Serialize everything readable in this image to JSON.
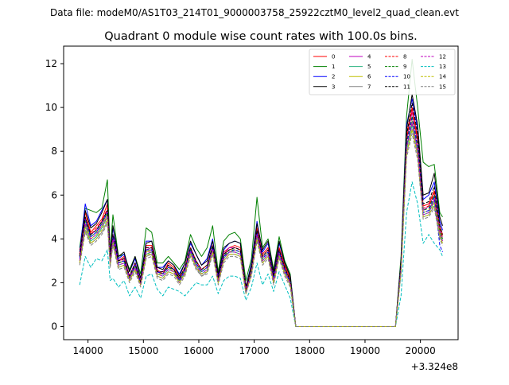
{
  "figure": {
    "suptitle": "Data file: modeM0/AS1T03_214T01_9000003758_25922cztM0_level2_quad_clean.evt"
  },
  "chart_data": {
    "type": "line",
    "title": "Quadrant 0 module wise count rates with 100.0s bins.",
    "xlabel": "",
    "ylabel": "",
    "x_offset_label": "+3.324e8",
    "xlim": [
      13560,
      20680
    ],
    "ylim": [
      -0.6,
      12.8
    ],
    "xticks": [
      14000,
      15000,
      16000,
      17000,
      18000,
      19000,
      20000
    ],
    "yticks": [
      0,
      2,
      4,
      6,
      8,
      10,
      12
    ],
    "grid": false,
    "legend": {
      "placement": "top-right",
      "ncol": 4
    },
    "x": [
      13850,
      13950,
      14050,
      14150,
      14250,
      14350,
      14400,
      14450,
      14550,
      14650,
      14750,
      14850,
      14950,
      15050,
      15150,
      15250,
      15350,
      15450,
      15550,
      15650,
      15750,
      15850,
      15950,
      16050,
      16150,
      16250,
      16350,
      16450,
      16550,
      16650,
      16750,
      16850,
      16950,
      17050,
      17150,
      17250,
      17350,
      17450,
      17550,
      17650,
      17750,
      17850,
      17950,
      18050,
      18150,
      18250,
      18350,
      18450,
      18550,
      18650,
      18750,
      18850,
      18950,
      19050,
      19150,
      19250,
      19350,
      19450,
      19550,
      19650,
      19750,
      19850,
      19950,
      20050,
      20150,
      20250,
      20350,
      20400
    ],
    "series": [
      {
        "name": "0",
        "color": "#ff0000",
        "dashed": false,
        "values": [
          3.5,
          5.2,
          4.3,
          4.6,
          4.9,
          5.6,
          3.2,
          4.2,
          3.0,
          3.2,
          2.3,
          2.9,
          2.0,
          3.7,
          3.7,
          2.6,
          2.4,
          2.9,
          2.7,
          2.2,
          2.7,
          3.6,
          3.0,
          2.6,
          2.8,
          3.7,
          2.3,
          3.4,
          3.6,
          3.7,
          3.6,
          1.7,
          2.6,
          4.5,
          3.3,
          3.6,
          2.3,
          3.6,
          2.8,
          2.2,
          0,
          0,
          0,
          0,
          0,
          0,
          0,
          0,
          0,
          0,
          0,
          0,
          0,
          0,
          0,
          0,
          0,
          0,
          0,
          2.8,
          8.8,
          10.0,
          8.6,
          5.5,
          5.6,
          6.2,
          4.6,
          4.2
        ]
      },
      {
        "name": "1",
        "color": "#008000",
        "dashed": false,
        "values": [
          3.6,
          5.4,
          5.3,
          5.2,
          5.4,
          6.7,
          3.4,
          5.1,
          3.2,
          3.3,
          2.6,
          3.2,
          2.4,
          4.5,
          4.3,
          2.9,
          2.9,
          3.2,
          2.9,
          2.6,
          3.0,
          4.2,
          3.6,
          3.2,
          3.6,
          4.6,
          2.5,
          3.9,
          4.2,
          4.3,
          4.0,
          2.1,
          3.1,
          5.9,
          3.6,
          4.0,
          2.6,
          4.1,
          3.0,
          2.4,
          0,
          0,
          0,
          0,
          0,
          0,
          0,
          0,
          0,
          0,
          0,
          0,
          0,
          0,
          0,
          0,
          0,
          0,
          0,
          3.2,
          9.6,
          12.2,
          10.0,
          7.5,
          7.3,
          7.4,
          5.2,
          5.0
        ]
      },
      {
        "name": "2",
        "color": "#0000ff",
        "dashed": false,
        "values": [
          3.4,
          5.6,
          4.6,
          4.8,
          5.3,
          5.8,
          3.3,
          4.5,
          3.1,
          3.3,
          2.5,
          3.1,
          2.2,
          3.9,
          3.9,
          2.7,
          2.7,
          3.0,
          2.8,
          2.4,
          2.9,
          3.8,
          3.3,
          2.8,
          3.1,
          4.0,
          2.3,
          3.5,
          3.8,
          3.9,
          3.8,
          1.8,
          2.9,
          4.8,
          3.4,
          3.8,
          2.4,
          3.8,
          2.9,
          2.3,
          0,
          0,
          0,
          0,
          0,
          0,
          0,
          0,
          0,
          0,
          0,
          0,
          0,
          0,
          0,
          0,
          0,
          0,
          0,
          3.0,
          9.2,
          10.4,
          9.0,
          5.8,
          6.0,
          6.6,
          4.8,
          4.4
        ]
      },
      {
        "name": "3",
        "color": "#000000",
        "dashed": false,
        "values": [
          3.3,
          5.3,
          4.5,
          4.7,
          5.2,
          5.8,
          3.3,
          4.6,
          3.2,
          3.4,
          2.5,
          3.2,
          2.2,
          3.8,
          3.9,
          2.7,
          2.6,
          3.0,
          2.8,
          2.3,
          2.9,
          3.9,
          3.3,
          2.8,
          3.0,
          3.9,
          2.4,
          3.6,
          3.8,
          3.9,
          3.8,
          1.8,
          2.8,
          4.7,
          3.5,
          3.9,
          2.5,
          3.9,
          2.9,
          2.3,
          0,
          0,
          0,
          0,
          0,
          0,
          0,
          0,
          0,
          0,
          0,
          0,
          0,
          0,
          0,
          0,
          0,
          0,
          0,
          3.0,
          9.0,
          10.6,
          9.2,
          6.0,
          6.1,
          7.0,
          5.0,
          4.6
        ]
      },
      {
        "name": "4",
        "color": "#bf00bf",
        "dashed": false,
        "values": [
          3.2,
          4.9,
          4.2,
          4.4,
          4.8,
          5.3,
          3.1,
          4.2,
          3.0,
          3.1,
          2.3,
          2.9,
          2.1,
          3.5,
          3.6,
          2.5,
          2.5,
          2.8,
          2.6,
          2.2,
          2.7,
          3.6,
          3.0,
          2.6,
          2.8,
          3.7,
          2.2,
          3.3,
          3.6,
          3.6,
          3.5,
          1.7,
          2.6,
          4.4,
          3.2,
          3.5,
          2.2,
          3.5,
          2.7,
          2.1,
          0,
          0,
          0,
          0,
          0,
          0,
          0,
          0,
          0,
          0,
          0,
          0,
          0,
          0,
          0,
          0,
          0,
          0,
          0,
          2.7,
          8.5,
          9.8,
          8.4,
          5.3,
          5.5,
          6.0,
          4.4,
          4.1
        ]
      },
      {
        "name": "5",
        "color": "#2ab27f",
        "dashed": false,
        "values": [
          3.0,
          4.6,
          3.9,
          4.1,
          4.5,
          5.0,
          2.9,
          3.9,
          2.8,
          2.9,
          2.2,
          2.7,
          1.9,
          3.3,
          3.4,
          2.4,
          2.3,
          2.6,
          2.5,
          2.0,
          2.5,
          3.4,
          2.8,
          2.4,
          2.6,
          3.5,
          2.1,
          3.1,
          3.4,
          3.4,
          3.3,
          1.6,
          2.5,
          4.1,
          3.0,
          3.3,
          2.1,
          3.3,
          2.5,
          2.0,
          0,
          0,
          0,
          0,
          0,
          0,
          0,
          0,
          0,
          0,
          0,
          0,
          0,
          0,
          0,
          0,
          0,
          0,
          0,
          2.6,
          8.1,
          9.2,
          8.0,
          5.1,
          5.2,
          5.7,
          4.2,
          3.9
        ]
      },
      {
        "name": "6",
        "color": "#bfbf00",
        "dashed": false,
        "values": [
          3.1,
          4.7,
          4.0,
          4.2,
          4.6,
          5.1,
          3.0,
          4.0,
          2.9,
          3.0,
          2.2,
          2.8,
          2.0,
          3.4,
          3.5,
          2.4,
          2.4,
          2.7,
          2.5,
          2.1,
          2.6,
          3.5,
          2.9,
          2.5,
          2.7,
          3.5,
          2.1,
          3.2,
          3.4,
          3.5,
          3.4,
          1.6,
          2.5,
          4.2,
          3.1,
          3.4,
          2.2,
          3.4,
          2.6,
          2.0,
          0,
          0,
          0,
          0,
          0,
          0,
          0,
          0,
          0,
          0,
          0,
          0,
          0,
          0,
          0,
          0,
          0,
          0,
          0,
          2.6,
          8.2,
          9.4,
          8.1,
          5.2,
          5.3,
          5.8,
          4.3,
          4.0
        ]
      },
      {
        "name": "7",
        "color": "#808080",
        "dashed": false,
        "values": [
          2.9,
          4.4,
          3.8,
          4.0,
          4.3,
          4.8,
          2.8,
          3.8,
          2.7,
          2.8,
          2.1,
          2.6,
          1.9,
          3.2,
          3.3,
          2.3,
          2.2,
          2.5,
          2.4,
          2.0,
          2.4,
          3.3,
          2.7,
          2.3,
          2.5,
          3.4,
          2.0,
          3.0,
          3.3,
          3.3,
          3.2,
          1.5,
          2.4,
          4.0,
          2.9,
          3.2,
          2.0,
          3.2,
          2.4,
          1.9,
          0,
          0,
          0,
          0,
          0,
          0,
          0,
          0,
          0,
          0,
          0,
          0,
          0,
          0,
          0,
          0,
          0,
          0,
          0,
          2.5,
          7.9,
          9.0,
          7.8,
          5.0,
          5.1,
          5.5,
          4.1,
          3.8
        ]
      },
      {
        "name": "8",
        "color": "#ff0000",
        "dashed": true,
        "values": [
          3.3,
          5.0,
          4.2,
          4.5,
          4.8,
          5.4,
          3.1,
          4.1,
          2.9,
          3.1,
          2.3,
          2.9,
          2.0,
          3.6,
          3.6,
          2.5,
          2.4,
          2.8,
          2.6,
          2.2,
          2.7,
          3.6,
          3.0,
          2.6,
          2.8,
          3.6,
          2.2,
          3.3,
          3.5,
          3.6,
          3.5,
          1.7,
          2.6,
          4.4,
          3.2,
          3.5,
          2.3,
          3.5,
          2.7,
          2.1,
          0,
          0,
          0,
          0,
          0,
          0,
          0,
          0,
          0,
          0,
          0,
          0,
          0,
          0,
          0,
          0,
          0,
          0,
          0,
          2.8,
          8.6,
          9.9,
          8.5,
          5.4,
          5.5,
          6.1,
          4.5,
          4.1
        ]
      },
      {
        "name": "9",
        "color": "#008000",
        "dashed": true,
        "values": [
          3.2,
          4.8,
          4.1,
          4.3,
          4.7,
          5.2,
          3.0,
          4.0,
          2.9,
          3.0,
          2.2,
          2.8,
          2.0,
          3.5,
          3.5,
          2.5,
          2.4,
          2.7,
          2.6,
          2.1,
          2.6,
          3.5,
          2.9,
          2.5,
          2.7,
          3.6,
          2.2,
          3.2,
          3.5,
          3.5,
          3.4,
          1.6,
          2.6,
          4.3,
          3.1,
          3.4,
          2.2,
          3.4,
          2.6,
          2.1,
          0,
          0,
          0,
          0,
          0,
          0,
          0,
          0,
          0,
          0,
          0,
          0,
          0,
          0,
          0,
          0,
          0,
          0,
          0,
          2.7,
          8.4,
          9.6,
          8.3,
          5.3,
          5.4,
          6.0,
          4.4,
          4.0
        ]
      },
      {
        "name": "10",
        "color": "#0000ff",
        "dashed": true,
        "values": [
          3.1,
          4.9,
          4.1,
          4.3,
          4.7,
          5.2,
          3.0,
          4.1,
          2.9,
          3.0,
          2.2,
          2.8,
          2.0,
          3.5,
          3.5,
          2.5,
          2.4,
          2.7,
          2.6,
          2.1,
          2.6,
          3.5,
          2.9,
          2.5,
          2.7,
          3.6,
          2.2,
          3.2,
          3.4,
          3.5,
          3.4,
          1.6,
          2.5,
          4.3,
          3.1,
          3.4,
          2.2,
          3.4,
          2.6,
          2.0,
          0,
          0,
          0,
          0,
          0,
          0,
          0,
          0,
          0,
          0,
          0,
          0,
          0,
          0,
          0,
          0,
          0,
          0,
          0,
          2.7,
          8.3,
          9.5,
          8.2,
          5.2,
          5.3,
          5.9,
          3.7,
          3.4
        ]
      },
      {
        "name": "11",
        "color": "#000000",
        "dashed": true,
        "values": [
          3.2,
          5.0,
          4.2,
          4.4,
          4.8,
          5.3,
          3.1,
          4.2,
          3.0,
          3.1,
          2.3,
          2.9,
          2.0,
          3.6,
          3.6,
          2.5,
          2.5,
          2.8,
          2.6,
          2.2,
          2.7,
          3.6,
          3.0,
          2.6,
          2.8,
          3.7,
          2.2,
          3.3,
          3.5,
          3.6,
          3.5,
          1.7,
          2.6,
          4.4,
          3.2,
          3.5,
          2.3,
          3.5,
          2.7,
          2.1,
          0,
          0,
          0,
          0,
          0,
          0,
          0,
          0,
          0,
          0,
          0,
          0,
          0,
          0,
          0,
          0,
          0,
          0,
          0,
          2.8,
          8.7,
          10.2,
          8.8,
          5.6,
          5.7,
          6.4,
          4.6,
          4.2
        ]
      },
      {
        "name": "12",
        "color": "#bf00bf",
        "dashed": true,
        "values": [
          3.0,
          4.7,
          4.0,
          4.2,
          4.6,
          5.0,
          2.9,
          4.0,
          2.8,
          2.9,
          2.2,
          2.7,
          1.9,
          3.4,
          3.4,
          2.4,
          2.3,
          2.6,
          2.5,
          2.0,
          2.5,
          3.4,
          2.8,
          2.4,
          2.6,
          3.5,
          2.1,
          3.1,
          3.4,
          3.4,
          3.3,
          1.6,
          2.5,
          4.2,
          3.0,
          3.3,
          2.1,
          3.3,
          2.5,
          2.0,
          0,
          0,
          0,
          0,
          0,
          0,
          0,
          0,
          0,
          0,
          0,
          0,
          0,
          0,
          0,
          0,
          0,
          0,
          0,
          2.6,
          8.2,
          9.3,
          8.0,
          5.1,
          5.2,
          5.8,
          4.3,
          3.9
        ]
      },
      {
        "name": "13",
        "color": "#00bfbf",
        "dashed": true,
        "values": [
          1.9,
          3.2,
          2.7,
          3.1,
          3.0,
          3.5,
          2.1,
          2.2,
          1.8,
          2.1,
          1.4,
          1.8,
          1.3,
          2.3,
          2.4,
          1.7,
          1.4,
          1.8,
          1.7,
          1.6,
          1.4,
          1.7,
          2.0,
          1.9,
          1.9,
          2.3,
          1.5,
          2.1,
          2.3,
          2.3,
          2.2,
          1.2,
          1.8,
          2.9,
          1.9,
          2.4,
          1.6,
          2.5,
          1.9,
          1.3,
          0,
          0,
          0,
          0,
          0,
          0,
          0,
          0,
          0,
          0,
          0,
          0,
          0,
          0,
          0,
          0,
          0,
          0,
          0,
          1.4,
          5.2,
          6.6,
          5.6,
          3.8,
          4.2,
          3.8,
          3.5,
          3.2
        ]
      },
      {
        "name": "14",
        "color": "#bfbf00",
        "dashed": true,
        "values": [
          2.9,
          4.5,
          3.8,
          4.0,
          4.4,
          4.9,
          2.8,
          3.8,
          2.7,
          2.8,
          2.1,
          2.6,
          1.9,
          3.3,
          3.3,
          2.3,
          2.2,
          2.5,
          2.4,
          2.0,
          2.4,
          3.3,
          2.7,
          2.4,
          2.5,
          3.4,
          2.0,
          3.0,
          3.3,
          3.3,
          3.2,
          1.5,
          2.4,
          4.0,
          2.9,
          3.2,
          2.0,
          3.2,
          2.4,
          1.9,
          0,
          0,
          0,
          0,
          0,
          0,
          0,
          0,
          0,
          0,
          0,
          0,
          0,
          0,
          0,
          0,
          0,
          0,
          0,
          2.5,
          7.9,
          9.0,
          7.8,
          5.0,
          5.1,
          5.6,
          4.1,
          3.8
        ]
      },
      {
        "name": "15",
        "color": "#808080",
        "dashed": true,
        "values": [
          2.8,
          4.3,
          3.7,
          3.9,
          4.2,
          4.7,
          2.7,
          3.7,
          2.6,
          2.7,
          2.0,
          2.5,
          1.8,
          3.1,
          3.2,
          2.2,
          2.1,
          2.4,
          2.3,
          1.9,
          2.3,
          3.2,
          2.6,
          2.3,
          2.4,
          3.3,
          1.9,
          2.9,
          3.2,
          3.2,
          3.1,
          1.5,
          2.3,
          3.9,
          2.8,
          3.1,
          1.9,
          3.1,
          2.3,
          1.8,
          0,
          0,
          0,
          0,
          0,
          0,
          0,
          0,
          0,
          0,
          0,
          0,
          0,
          0,
          0,
          0,
          0,
          0,
          0,
          2.4,
          7.7,
          8.8,
          7.6,
          4.9,
          5.0,
          5.4,
          4.0,
          3.7
        ]
      }
    ]
  }
}
